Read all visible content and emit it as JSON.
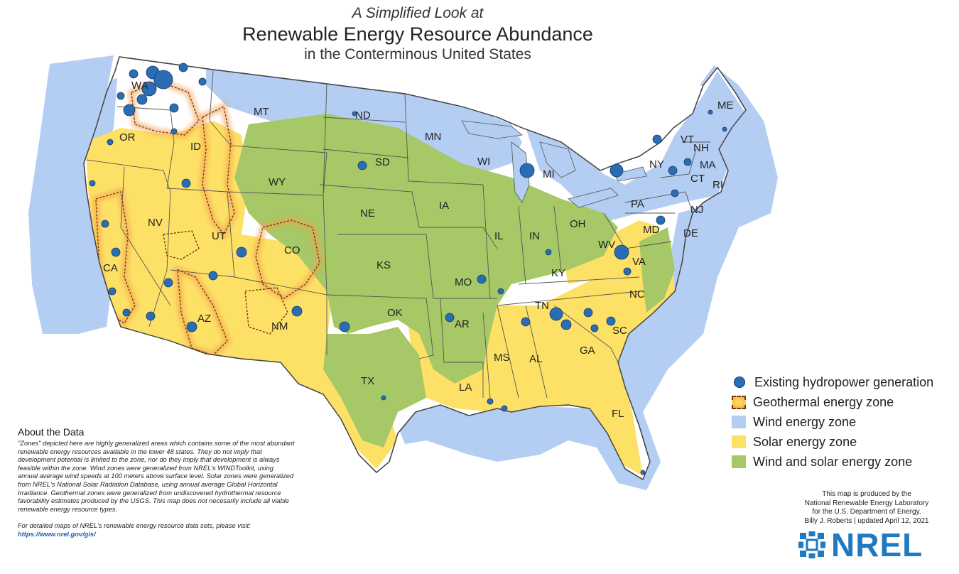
{
  "title": {
    "line1": "A Simplified Look at",
    "line2": "Renewable Energy Resource Abundance",
    "line3": "in the Conterminous United States"
  },
  "colors": {
    "wind": "#b4cdf3",
    "solar": "#fde166",
    "wind_and_solar": "#a6c866",
    "geothermal_fill": "#fbd75a",
    "geothermal_border": "#7a3b10",
    "hydro": "#2a6db5",
    "hydro_stroke": "#123a66",
    "land": "#ffffff",
    "state_border": "#555555"
  },
  "legend": {
    "items": [
      {
        "label": "Existing hydropower generation",
        "icon": "hydro-dot-icon"
      },
      {
        "label": "Geothermal energy zone",
        "icon": "geothermal-swatch-icon"
      },
      {
        "label": "Wind energy zone",
        "icon": "wind-swatch-icon"
      },
      {
        "label": "Solar energy zone",
        "icon": "solar-swatch-icon"
      },
      {
        "label": "Wind and solar energy zone",
        "icon": "wind-solar-swatch-icon"
      }
    ]
  },
  "states": [
    "WA",
    "OR",
    "CA",
    "NV",
    "ID",
    "MT",
    "WY",
    "UT",
    "AZ",
    "CO",
    "NM",
    "ND",
    "SD",
    "NE",
    "KS",
    "OK",
    "TX",
    "MN",
    "IA",
    "MO",
    "AR",
    "LA",
    "WI",
    "IL",
    "MI",
    "IN",
    "OH",
    "KY",
    "TN",
    "MS",
    "AL",
    "GA",
    "FL",
    "SC",
    "NC",
    "VA",
    "WV",
    "PA",
    "NY",
    "MD",
    "DE",
    "NJ",
    "CT",
    "RI",
    "MA",
    "VT",
    "NH",
    "ME"
  ],
  "about": {
    "heading": "About the Data",
    "body": "\"Zones\" depicted here are highly generalized areas which contains some of the most abundant renewable energy resources available in the lower 48 states. They do not imply that development potential is limited to the zone, nor do they imply that development is always feasible within the zone. Wind zones were generalized from NREL's WINDToolkit, using annual average wind speeds at 100 meters above surface level. Solar zones were generalized from NREL's National Solar Radiation Database, using annual average Global Horizontal Irradiance. Geothermal zones were generalized from undiscovered hydrothermal resource favorability estimates produced by the USGS. This map does not necesarily include all viable renewable energy resource types.",
    "link_note": "For detailed maps of NREL's renewable energy resource data sets, please visit:",
    "link": "https://www.nrel.gov/gis/"
  },
  "credits": {
    "line1": "This map is produced by the",
    "line2": "National Renewable Energy Laboratory",
    "line3": "for the U.S. Department of Energy.",
    "line4": "Billy J. Roberts | updated April 12, 2021"
  },
  "logo": {
    "text": "NREL",
    "icon": "nrel-sunburst-icon"
  }
}
